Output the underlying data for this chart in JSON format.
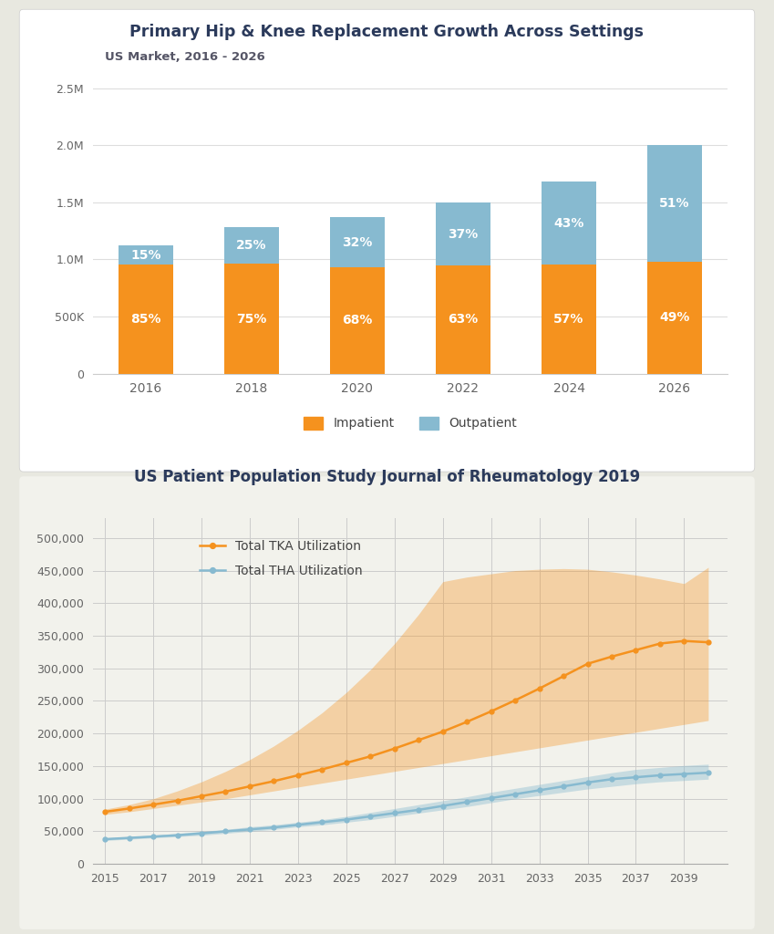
{
  "chart1": {
    "title": "Primary Hip & Knee Replacement Growth Across Settings",
    "subtitle": "US Market, 2016 - 2026",
    "years": [
      "2016",
      "2018",
      "2020",
      "2022",
      "2024",
      "2026"
    ],
    "outpatient_fractions": [
      0.15,
      0.25,
      0.32,
      0.37,
      0.43,
      0.51
    ],
    "total_values": [
      1120000,
      1280000,
      1370000,
      1500000,
      1680000,
      2000000
    ],
    "inpatient_pcts": [
      "85%",
      "75%",
      "68%",
      "63%",
      "57%",
      "49%"
    ],
    "outpatient_pcts": [
      "15%",
      "25%",
      "32%",
      "37%",
      "43%",
      "51%"
    ],
    "inpatient_color": "#F5921E",
    "outpatient_color": "#87BAD0",
    "yticks": [
      0,
      500000,
      1000000,
      1500000,
      2000000,
      2500000
    ],
    "ytick_labels": [
      "0",
      "500K",
      "1.0M",
      "1.5M",
      "2.0M",
      "2.5M"
    ],
    "ylim": [
      0,
      2700000
    ],
    "panel_color": "#FFFFFF",
    "title_color": "#2B3A5B",
    "subtitle_color": "#555566"
  },
  "chart2": {
    "title": "US Patient Population Study Journal of Rheumatology 2019",
    "tka_label": "Total TKA Utilization",
    "tha_label": "Total THA Utilization",
    "years": [
      2015,
      2016,
      2017,
      2018,
      2019,
      2020,
      2021,
      2022,
      2023,
      2024,
      2025,
      2026,
      2027,
      2028,
      2029,
      2030,
      2031,
      2032,
      2033,
      2034,
      2035,
      2036,
      2037,
      2038,
      2039,
      2040
    ],
    "tka_mean": [
      80000,
      85000,
      91000,
      97000,
      104000,
      111000,
      119000,
      127000,
      136000,
      145000,
      155000,
      165000,
      177000,
      190000,
      203000,
      218000,
      234000,
      251000,
      269000,
      288000,
      307000,
      318000,
      328000,
      338000,
      342000,
      340000
    ],
    "tka_lower": [
      76000,
      80000,
      85000,
      90000,
      95000,
      100000,
      106000,
      112000,
      118000,
      124000,
      130000,
      136000,
      142000,
      148000,
      154000,
      160000,
      166000,
      172000,
      178000,
      184000,
      190000,
      196000,
      202000,
      208000,
      214000,
      220000
    ],
    "tka_upper": [
      84000,
      91000,
      100000,
      112000,
      126000,
      142000,
      160000,
      181000,
      205000,
      232000,
      263000,
      298000,
      338000,
      383000,
      433000,
      440000,
      445000,
      450000,
      452000,
      453000,
      452000,
      448000,
      443000,
      437000,
      430000,
      455000
    ],
    "tha_mean": [
      38000,
      40000,
      42000,
      44000,
      47000,
      50000,
      53000,
      56000,
      60000,
      64000,
      68000,
      73000,
      78000,
      83000,
      89000,
      95000,
      101000,
      107000,
      113000,
      119000,
      125000,
      130000,
      133000,
      136000,
      138000,
      140000
    ],
    "tha_lower": [
      36000,
      38000,
      40000,
      42000,
      44000,
      47000,
      50000,
      53000,
      57000,
      60000,
      64000,
      68000,
      73000,
      78000,
      83000,
      88000,
      94000,
      100000,
      105000,
      110000,
      115000,
      119000,
      123000,
      126000,
      128000,
      130000
    ],
    "tha_upper": [
      40000,
      42000,
      44000,
      47000,
      50000,
      53000,
      57000,
      60000,
      64000,
      68000,
      73000,
      79000,
      85000,
      91000,
      97000,
      103000,
      110000,
      116000,
      122000,
      128000,
      134000,
      140000,
      145000,
      148000,
      151000,
      153000
    ],
    "tka_color": "#F5921E",
    "tha_color": "#87BAD0",
    "tka_fill_alpha": 0.35,
    "tha_fill_alpha": 0.4,
    "yticks": [
      0,
      50000,
      100000,
      150000,
      200000,
      250000,
      300000,
      350000,
      400000,
      450000,
      500000
    ],
    "ytick_labels": [
      "0",
      "50,000",
      "100,000",
      "150,000",
      "200,000",
      "250,000",
      "300,000",
      "350,000",
      "400,000",
      "450,000",
      "500,000"
    ],
    "xtick_years": [
      2015,
      2017,
      2019,
      2021,
      2023,
      2025,
      2027,
      2029,
      2031,
      2033,
      2035,
      2037,
      2039
    ],
    "ylim": [
      0,
      530000
    ],
    "panel_color": "#F2F2EC",
    "title_color": "#2B3A5B"
  },
  "bg_color": "#E8E8E0",
  "panel1_color": "#FFFFFF",
  "panel2_color": "#F2F2EC"
}
